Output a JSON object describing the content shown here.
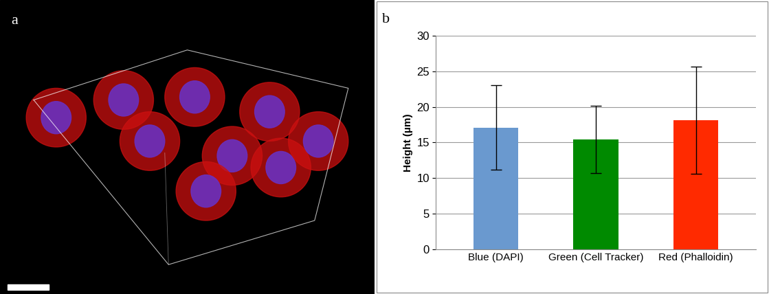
{
  "chart_data": [
    {
      "type": "image",
      "title": "a"
    },
    {
      "type": "bar",
      "title": "b",
      "categories": [
        "Blue (DAPI)",
        "Green (Cell Tracker)",
        "Red (Phalloidin)"
      ],
      "values": [
        17.1,
        15.4,
        18.1
      ],
      "error": [
        5.9,
        4.75,
        7.5
      ],
      "colors": [
        "#6a99cf",
        "#008a00",
        "#ff2a00"
      ],
      "y_label": "Height (µm)",
      "ylim": [
        0,
        30
      ],
      "yticks": [
        0,
        5,
        10,
        15,
        20,
        25,
        30
      ],
      "grid": true
    }
  ]
}
